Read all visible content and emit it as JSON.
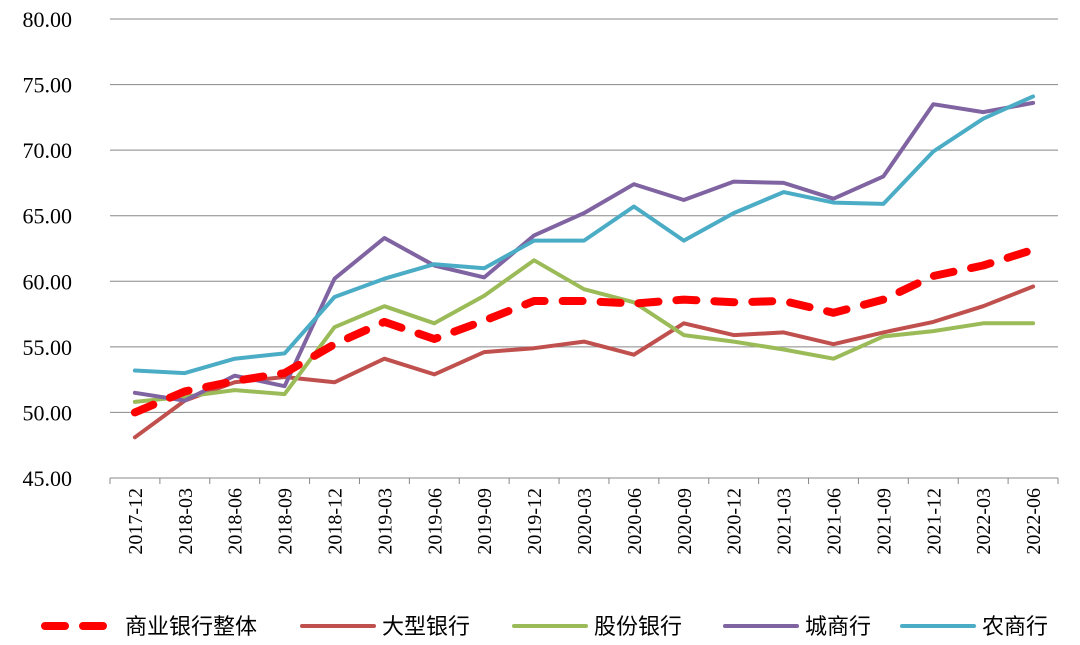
{
  "chart_data": {
    "type": "line",
    "title": "",
    "xlabel": "",
    "ylabel": "",
    "ylim": [
      45,
      80
    ],
    "yticks": [
      "45.00",
      "50.00",
      "55.00",
      "60.00",
      "65.00",
      "70.00",
      "75.00",
      "80.00"
    ],
    "grid": true,
    "legend_position": "bottom",
    "x": [
      "2017-12",
      "2018-03",
      "2018-06",
      "2018-09",
      "2018-12",
      "2019-03",
      "2019-06",
      "2019-09",
      "2019-12",
      "2020-03",
      "2020-06",
      "2020-09",
      "2020-12",
      "2021-03",
      "2021-06",
      "2021-09",
      "2021-12",
      "2022-03",
      "2022-06"
    ],
    "series": [
      {
        "name": "商业银行整体",
        "color": "#ff0000",
        "style": "dashed",
        "values": [
          50.0,
          51.6,
          52.4,
          53.0,
          55.2,
          56.9,
          55.6,
          57.0,
          58.5,
          58.5,
          58.3,
          58.6,
          58.4,
          58.5,
          57.6,
          58.6,
          60.4,
          61.2,
          62.4
        ]
      },
      {
        "name": "大型银行",
        "color": "#c0504d",
        "style": "solid",
        "values": [
          48.1,
          50.9,
          52.3,
          52.7,
          52.3,
          54.1,
          52.9,
          54.6,
          54.9,
          55.4,
          54.4,
          56.8,
          55.9,
          56.1,
          55.2,
          56.1,
          56.9,
          58.1,
          59.6
        ]
      },
      {
        "name": "股份银行",
        "color": "#9bbb59",
        "style": "solid",
        "values": [
          50.8,
          51.2,
          51.7,
          51.4,
          56.5,
          58.1,
          56.8,
          58.9,
          61.6,
          59.4,
          58.4,
          55.9,
          55.4,
          54.8,
          54.1,
          55.8,
          56.2,
          56.8,
          56.8
        ]
      },
      {
        "name": "城商行",
        "color": "#8064a2",
        "style": "solid",
        "values": [
          51.5,
          50.9,
          52.8,
          52.0,
          60.2,
          63.3,
          61.2,
          60.3,
          63.5,
          65.2,
          67.4,
          66.2,
          67.6,
          67.5,
          66.3,
          68.0,
          73.5,
          72.9,
          73.6
        ]
      },
      {
        "name": "农商行",
        "color": "#4bacc6",
        "style": "solid",
        "values": [
          53.2,
          53.0,
          54.1,
          54.5,
          58.8,
          60.2,
          61.3,
          61.0,
          63.1,
          63.1,
          65.7,
          63.1,
          65.2,
          66.8,
          66.0,
          65.9,
          69.9,
          72.4,
          74.1
        ]
      }
    ]
  }
}
